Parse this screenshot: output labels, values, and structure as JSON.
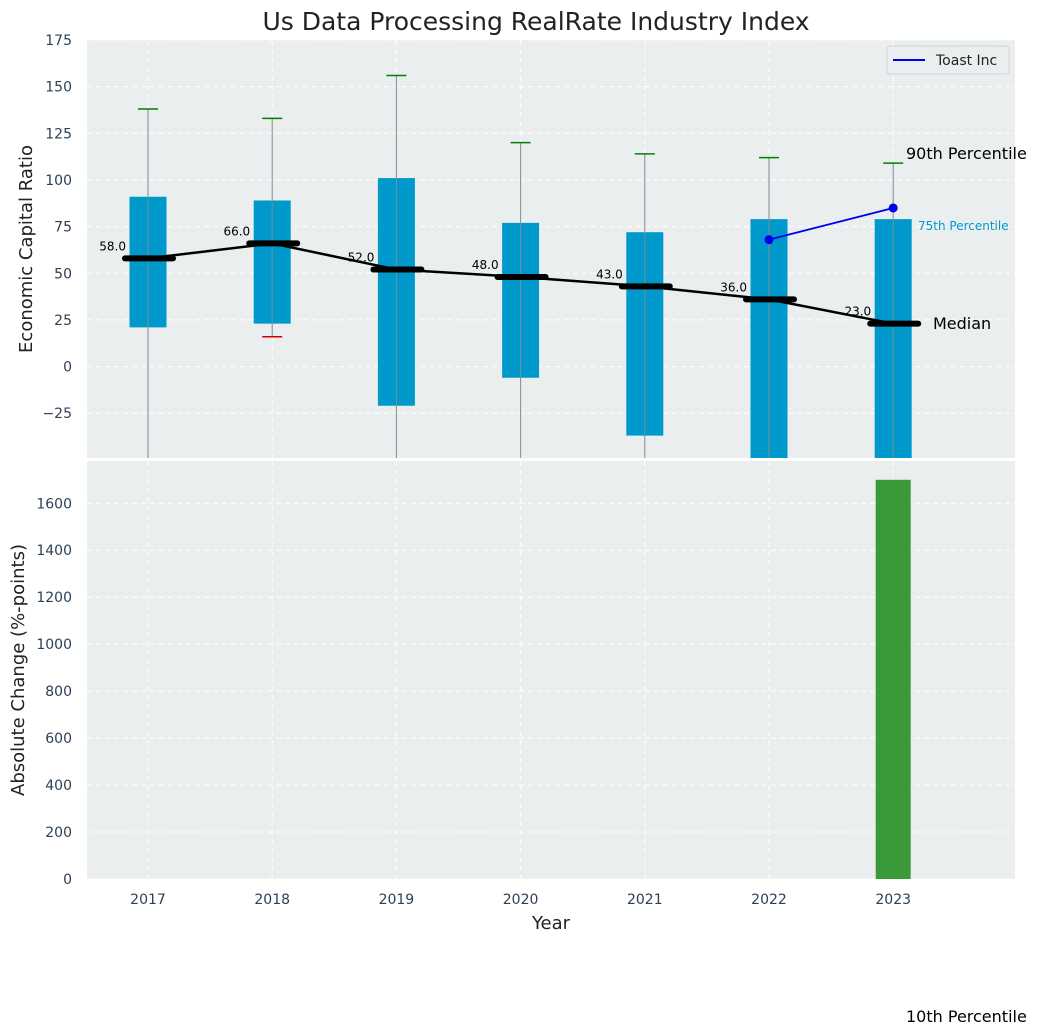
{
  "chart_data": [
    {
      "type": "box",
      "title": "Us Data Processing RealRate Industry Index",
      "ylabel": "Economic Capital Ratio",
      "ylim": [
        -49,
        175
      ],
      "yticks": [
        -25,
        0,
        25,
        50,
        75,
        100,
        125,
        150,
        175
      ],
      "grid": true,
      "categories": [
        "2017",
        "2018",
        "2019",
        "2020",
        "2021",
        "2022",
        "2023"
      ],
      "boxes": [
        {
          "year": "2017",
          "q1": 21,
          "q3": 91,
          "median": 58,
          "whisker_high": 138,
          "whisker_low": null
        },
        {
          "year": "2018",
          "q1": 23,
          "q3": 89,
          "median": 66,
          "whisker_high": 133,
          "whisker_low": 16
        },
        {
          "year": "2019",
          "q1": -21,
          "q3": 101,
          "median": 52,
          "whisker_high": 156,
          "whisker_low": null
        },
        {
          "year": "2020",
          "q1": -6,
          "q3": 77,
          "median": 48,
          "whisker_high": 120,
          "whisker_low": null
        },
        {
          "year": "2021",
          "q1": -37,
          "q3": 72,
          "median": 43,
          "whisker_high": 114,
          "whisker_low": null
        },
        {
          "year": "2022",
          "q1": -49,
          "q3": 79,
          "median": 36,
          "whisker_high": 112,
          "whisker_low": null
        },
        {
          "year": "2023",
          "q1": -49,
          "q3": 79,
          "median": 23,
          "whisker_high": 109,
          "whisker_low": null
        }
      ],
      "median_labels": [
        "58.0",
        "66.0",
        "52.0",
        "48.0",
        "43.0",
        "36.0",
        "23.0"
      ],
      "series": [
        {
          "name": "Toast Inc",
          "x": [
            "2022",
            "2023"
          ],
          "values": [
            68,
            85
          ],
          "color": "#0000ee"
        }
      ],
      "legend": {
        "position": "top-right",
        "entries": [
          "Toast Inc"
        ]
      },
      "annotations": {
        "p90": "90th Percentile",
        "p75": "75th Percentile",
        "median": "Median",
        "p10": "10th Percentile"
      },
      "colors": {
        "box": "#0099cc",
        "median": "#000000",
        "whisker_high": "#008000",
        "whisker_low": "#cc0000",
        "background": "#eaeeef"
      }
    },
    {
      "type": "bar",
      "xlabel": "Year",
      "ylabel": "Absolute Change (%-points)",
      "categories": [
        "2017",
        "2018",
        "2019",
        "2020",
        "2021",
        "2022",
        "2023"
      ],
      "values": [
        0,
        0,
        0,
        0,
        0,
        0,
        1700
      ],
      "ylim": [
        0,
        1780
      ],
      "yticks": [
        0,
        200,
        400,
        600,
        800,
        1000,
        1200,
        1400,
        1600
      ],
      "grid": true,
      "colors": {
        "bar": "#3a9a3a",
        "background": "#eaeeef"
      }
    }
  ]
}
